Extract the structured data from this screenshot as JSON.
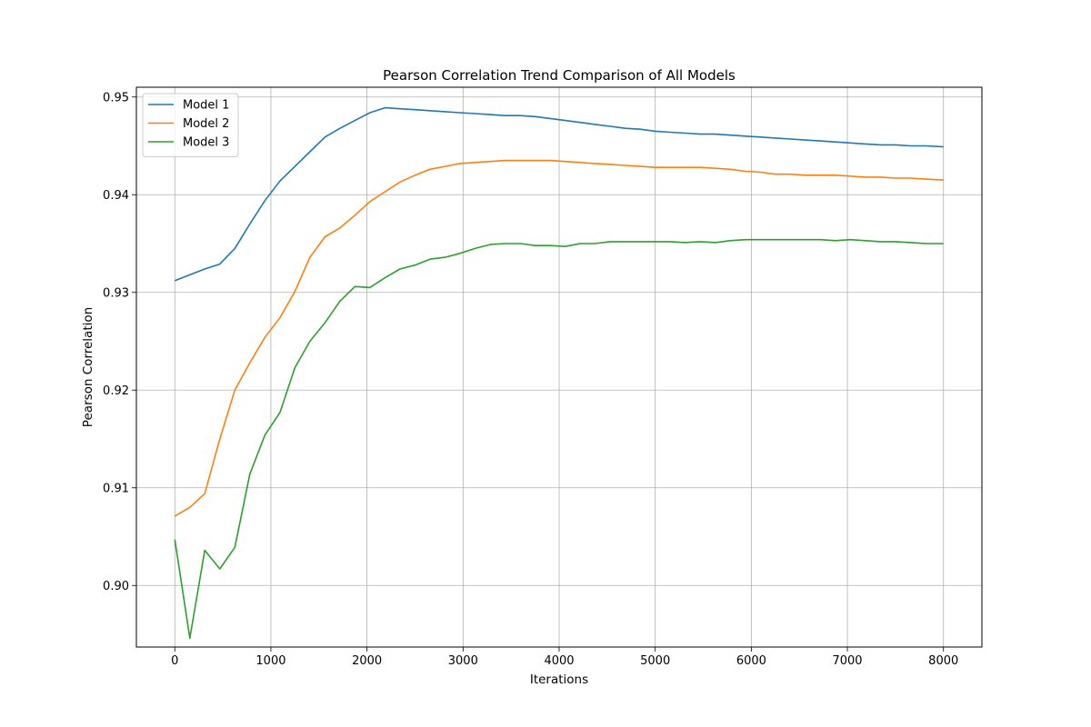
{
  "chart_data": {
    "type": "line",
    "title": "Pearson Correlation Trend Comparison of All Models",
    "xlabel": "Iterations",
    "ylabel": "Pearson Correlation",
    "xlim": [
      -400,
      8400
    ],
    "ylim": [
      0.8937,
      0.951
    ],
    "xticks": [
      0,
      1000,
      2000,
      3000,
      4000,
      5000,
      6000,
      7000,
      8000
    ],
    "yticks": [
      0.9,
      0.91,
      0.92,
      0.93,
      0.94,
      0.95
    ],
    "ytick_labels": [
      "0.90",
      "0.91",
      "0.92",
      "0.93",
      "0.94",
      "0.95"
    ],
    "grid": true,
    "legend_position": "top-left",
    "x": [
      0,
      156,
      312,
      469,
      625,
      781,
      938,
      1094,
      1250,
      1406,
      1563,
      1719,
      1875,
      2031,
      2188,
      2344,
      2500,
      2656,
      2813,
      2969,
      3125,
      3281,
      3438,
      3594,
      3750,
      3906,
      4063,
      4219,
      4375,
      4531,
      4688,
      4844,
      5000,
      5156,
      5313,
      5469,
      5625,
      5781,
      5938,
      6094,
      6250,
      6406,
      6563,
      6719,
      6875,
      7031,
      7188,
      7344,
      7500,
      7656,
      7813,
      8000
    ],
    "series": [
      {
        "name": "Model 1",
        "color": "#1f77b4",
        "values": [
          0.9312,
          0.9318,
          0.9324,
          0.9329,
          0.9345,
          0.937,
          0.9394,
          0.9414,
          0.9429,
          0.9444,
          0.9459,
          0.9468,
          0.9476,
          0.9484,
          0.9489,
          0.9488,
          0.9487,
          0.9486,
          0.9485,
          0.9484,
          0.9483,
          0.9482,
          0.9481,
          0.9481,
          0.948,
          0.9478,
          0.9476,
          0.9474,
          0.9472,
          0.947,
          0.9468,
          0.9467,
          0.9465,
          0.9464,
          0.9463,
          0.9462,
          0.9462,
          0.9461,
          0.946,
          0.9459,
          0.9458,
          0.9457,
          0.9456,
          0.9455,
          0.9454,
          0.9453,
          0.9452,
          0.9451,
          0.9451,
          0.945,
          0.945,
          0.9449
        ]
      },
      {
        "name": "Model 2",
        "color": "#ff7f0e",
        "values": [
          0.9071,
          0.908,
          0.9094,
          0.915,
          0.92,
          0.9228,
          0.9254,
          0.9274,
          0.9301,
          0.9336,
          0.9357,
          0.9366,
          0.9379,
          0.9393,
          0.9403,
          0.9413,
          0.942,
          0.9426,
          0.9429,
          0.9432,
          0.9433,
          0.9434,
          0.9435,
          0.9435,
          0.9435,
          0.9435,
          0.9434,
          0.9433,
          0.9432,
          0.9431,
          0.943,
          0.9429,
          0.9428,
          0.9428,
          0.9428,
          0.9428,
          0.9427,
          0.9426,
          0.9424,
          0.9423,
          0.9421,
          0.9421,
          0.942,
          0.942,
          0.942,
          0.9419,
          0.9418,
          0.9418,
          0.9417,
          0.9417,
          0.9416,
          0.9415
        ]
      },
      {
        "name": "Model 3",
        "color": "#2ca02c",
        "values": [
          0.9047,
          0.8946,
          0.9036,
          0.9017,
          0.9039,
          0.9114,
          0.9154,
          0.9177,
          0.9223,
          0.925,
          0.9269,
          0.9291,
          0.9306,
          0.9305,
          0.9315,
          0.9324,
          0.9328,
          0.9334,
          0.9336,
          0.934,
          0.9345,
          0.9349,
          0.935,
          0.935,
          0.9348,
          0.9348,
          0.9347,
          0.935,
          0.935,
          0.9352,
          0.9352,
          0.9352,
          0.9352,
          0.9352,
          0.9351,
          0.9352,
          0.9351,
          0.9353,
          0.9354,
          0.9354,
          0.9354,
          0.9354,
          0.9354,
          0.9354,
          0.9353,
          0.9354,
          0.9353,
          0.9352,
          0.9352,
          0.9351,
          0.935,
          0.935
        ]
      }
    ]
  }
}
